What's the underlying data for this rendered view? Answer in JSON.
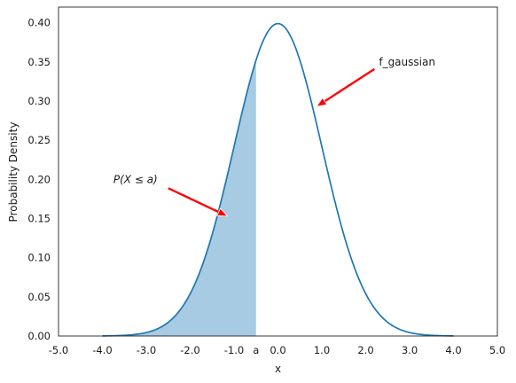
{
  "chart_data": {
    "type": "line",
    "title": "",
    "xlabel": "x",
    "ylabel": "Probability Density",
    "xlim": [
      -5.0,
      5.0
    ],
    "ylim": [
      0.0,
      0.42
    ],
    "grid": false,
    "xticks": [
      {
        "value": -5.0,
        "label": "-5.0"
      },
      {
        "value": -4.0,
        "label": "-4.0"
      },
      {
        "value": -3.0,
        "label": "-3.0"
      },
      {
        "value": -2.0,
        "label": "-2.0"
      },
      {
        "value": -1.0,
        "label": "-1.0"
      },
      {
        "value": -0.5,
        "label": "a",
        "color": "#ff0000"
      },
      {
        "value": 0.0,
        "label": "0.0"
      },
      {
        "value": 1.0,
        "label": "1.0"
      },
      {
        "value": 2.0,
        "label": "2.0"
      },
      {
        "value": 3.0,
        "label": "3.0"
      },
      {
        "value": 4.0,
        "label": "4.0"
      },
      {
        "value": 5.0,
        "label": "5.0"
      }
    ],
    "yticks": [
      {
        "value": 0.0,
        "label": "0.00"
      },
      {
        "value": 0.05,
        "label": "0.05"
      },
      {
        "value": 0.1,
        "label": "0.10"
      },
      {
        "value": 0.15,
        "label": "0.15"
      },
      {
        "value": 0.2,
        "label": "0.20"
      },
      {
        "value": 0.25,
        "label": "0.25"
      },
      {
        "value": 0.3,
        "label": "0.30"
      },
      {
        "value": 0.35,
        "label": "0.35"
      },
      {
        "value": 0.4,
        "label": "0.40"
      }
    ],
    "series": [
      {
        "color": "#1f77b4",
        "x": [
          -4.0,
          -3.5,
          -3.0,
          -2.5,
          -2.0,
          -1.5,
          -1.0,
          -0.5,
          0.0,
          0.5,
          1.0,
          1.5,
          2.0,
          2.5,
          3.0,
          3.5,
          4.0
        ],
        "y": [
          0.0001,
          0.0009,
          0.0044,
          0.0175,
          0.054,
          0.1295,
          0.242,
          0.3521,
          0.3989,
          0.3521,
          0.242,
          0.1295,
          0.054,
          0.0175,
          0.0044,
          0.0009,
          0.0001
        ]
      }
    ],
    "shaded_region": {
      "from": -4.0,
      "to": -0.5,
      "color": "#a6cbe3"
    },
    "annotations": [
      {
        "text": "f_gaussian",
        "x": 2.3,
        "y": 0.35,
        "arrow_to": [
          0.88,
          0.293
        ],
        "arrow_color": "#ff0000"
      },
      {
        "text": "P(X ≤ a)",
        "x": -3.75,
        "y": 0.2,
        "italic": true,
        "arrow_to": [
          -1.15,
          0.153
        ],
        "arrow_color": "#ff0000"
      }
    ]
  }
}
